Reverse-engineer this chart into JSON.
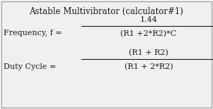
{
  "title": "Astable Multivibrator (calculator#1)",
  "freq_label": "Frequency, f =",
  "freq_numerator": "1.44",
  "freq_denominator": "(R1 +2*R2)*C",
  "duty_label": "Duty Cycle =",
  "duty_numerator": "(R1 + R2)",
  "duty_denominator": "(R1 + 2*R2)",
  "bg_color": "#f0f0f0",
  "text_color": "#1a1a1a",
  "title_fontsize": 8.5,
  "formula_fontsize": 8.0,
  "border_color": "#999999",
  "fig_width": 3.01,
  "fig_height": 1.55,
  "dpi": 100
}
